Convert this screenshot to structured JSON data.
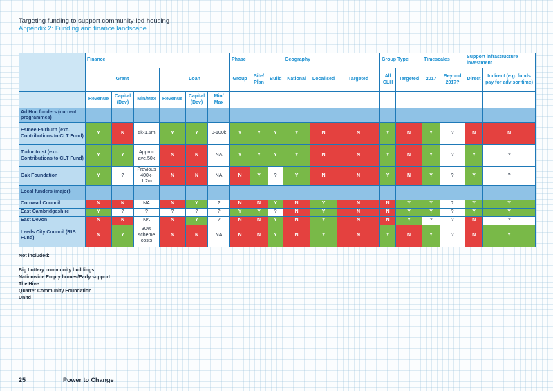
{
  "header": {
    "title": "Targeting funding to support community-led housing",
    "subtitle": "Appendix 2: Funding and finance landscape"
  },
  "table": {
    "groups": {
      "finance": "Finance",
      "phase": "Phase",
      "geography": "Geography",
      "group_type": "Group Type",
      "timescales": "Timescales",
      "support": "Support infrastructure investment"
    },
    "subgroups": {
      "grant": "Grant",
      "loan": "Loan",
      "group": "Group",
      "site_plan": "Site/ Plan",
      "build": "Build",
      "national": "National",
      "localised": "Localised",
      "targeted": "Targeted",
      "all_clh": "All CLH",
      "gt_targeted": "Targeted",
      "y2017": "2017",
      "beyond": "Beyond 2017?",
      "direct": "Direct",
      "indirect": "Indirect (e.g. funds pay for advisor time)"
    },
    "subsub": {
      "g_revenue": "Revenue",
      "g_capital": "Capital (Dev)",
      "g_minmax": "Min/Max",
      "l_revenue": "Revenue",
      "l_capital": "Capital (Dev)",
      "l_minmax": "Min/ Max"
    },
    "sections": [
      {
        "label": "Ad Hoc funders (current programmes)",
        "rows": [
          {
            "name": "Esmee Fairburn (exc. Contributions to CLT Fund)",
            "cells": [
              "Y",
              "N",
              "5k-1.5m",
              "Y",
              "Y",
              "0-100k",
              "Y",
              "Y",
              "Y",
              "Y",
              "N",
              "N",
              "Y",
              "N",
              "Y",
              "?",
              "N",
              "N"
            ]
          },
          {
            "name": "Tudor trust (exc. Contributions to CLT Fund)",
            "cells": [
              "Y",
              "Y",
              "Approx ave.50k",
              "N",
              "N",
              "NA",
              "Y",
              "Y",
              "Y",
              "Y",
              "N",
              "N",
              "Y",
              "N",
              "Y",
              "?",
              "Y",
              "?"
            ]
          },
          {
            "name": "Oak Foundation",
            "cells": [
              "Y",
              "?",
              "Previous 400k-1.2m",
              "N",
              "N",
              "NA",
              "N",
              "Y",
              "?",
              "Y",
              "N",
              "N",
              "Y",
              "N",
              "Y",
              "?",
              "Y",
              "?"
            ]
          }
        ]
      },
      {
        "label": "Local funders (major)",
        "rows": [
          {
            "name": "Cornwall Council",
            "cells": [
              "N",
              "N",
              "NA",
              "N",
              "Y",
              "?",
              "N",
              "N",
              "Y",
              "N",
              "Y",
              "N",
              "N",
              "Y",
              "Y",
              "?",
              "Y",
              "Y"
            ]
          },
          {
            "name": "East Cambridgeshire",
            "cells": [
              "Y",
              "?",
              "?",
              "?",
              "?",
              "?",
              "Y",
              "Y",
              "?",
              "N",
              "Y",
              "N",
              "N",
              "Y",
              "Y",
              "?",
              "Y",
              "Y"
            ]
          },
          {
            "name": "East Devon",
            "cells": [
              "N",
              "N",
              "NA",
              "N",
              "Y",
              "?",
              "N",
              "N",
              "Y",
              "N",
              "Y",
              "N",
              "N",
              "Y",
              "?",
              "?",
              "N",
              "?"
            ]
          },
          {
            "name": "Leeds City Council (RtB Fund)",
            "cells": [
              "N",
              "Y",
              "30% scheme costs",
              "N",
              "N",
              "NA",
              "N",
              "N",
              "Y",
              "N",
              "Y",
              "N",
              "Y",
              "N",
              "Y",
              "?",
              "N",
              "Y"
            ]
          }
        ]
      }
    ]
  },
  "notes": {
    "heading": "Not included:",
    "items": [
      "Big Lottery community buildings",
      "Nationwide Empty homes/Early support",
      "The Hive",
      "Quartet Community Foundation",
      "Unltd"
    ]
  },
  "footer": {
    "page_number": "25",
    "brand": "Power to Change"
  },
  "colors": {
    "yes": "#79b948",
    "no": "#e4413f",
    "accent": "#1b9ad6"
  }
}
